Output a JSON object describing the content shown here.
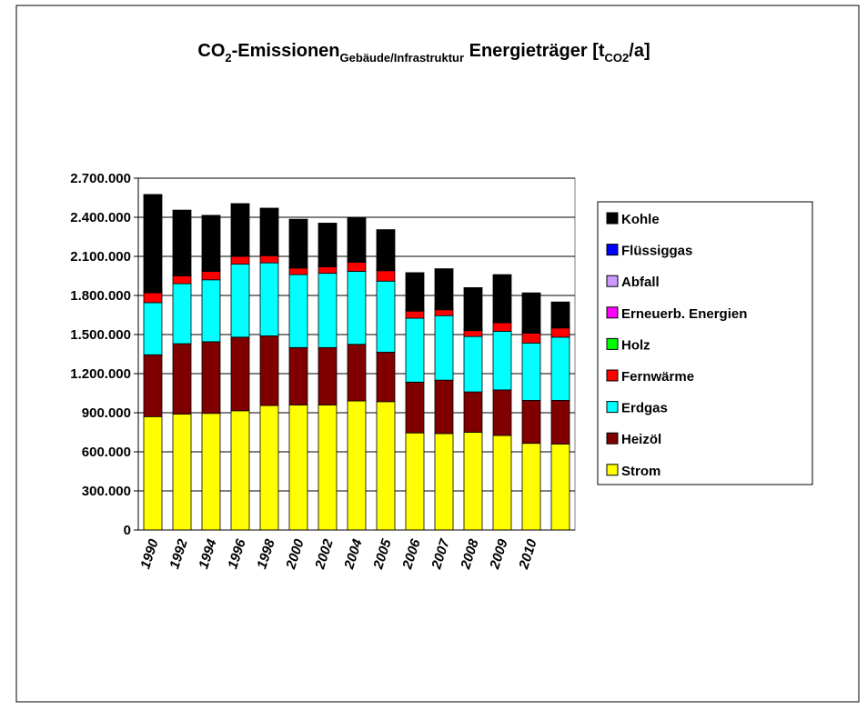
{
  "chart_data": {
    "type": "stacked_bar",
    "title": [
      {
        "text": "CO"
      },
      {
        "text": "2",
        "sub": true
      },
      {
        "text": "-Emissionen"
      },
      {
        "text": "Gebäude/Infrastruktur",
        "sub": true
      },
      {
        "text": " Energieträger [t"
      },
      {
        "text": "CO2",
        "sub": true
      },
      {
        "text": "/a]"
      }
    ],
    "categories": [
      "1990",
      "1992",
      "1994",
      "1996",
      "1998",
      "2000",
      "2002",
      "2004",
      "2005",
      "2006",
      "2007",
      "2008",
      "2009",
      "2010",
      null
    ],
    "series": [
      {
        "name": "Strom",
        "color": "#ffff00",
        "values": [
          870000,
          890000,
          895000,
          915000,
          955000,
          960000,
          960000,
          990000,
          985000,
          745000,
          740000,
          750000,
          725000,
          665000,
          660000
        ]
      },
      {
        "name": "Heizöl",
        "color": "#800000",
        "values": [
          475000,
          540000,
          550000,
          565000,
          535000,
          440000,
          440000,
          435000,
          380000,
          390000,
          410000,
          310000,
          350000,
          330000,
          335000
        ]
      },
      {
        "name": "Erdgas",
        "color": "#00ffff",
        "values": [
          400000,
          460000,
          475000,
          560000,
          560000,
          560000,
          570000,
          560000,
          545000,
          490000,
          495000,
          425000,
          450000,
          440000,
          485000
        ]
      },
      {
        "name": "Fernwärme",
        "color": "#ff0000",
        "values": [
          75000,
          60000,
          65000,
          60000,
          55000,
          50000,
          50000,
          70000,
          80000,
          55000,
          45000,
          45000,
          65000,
          75000,
          70000
        ]
      },
      {
        "name": "Holz",
        "color": "#00ff00",
        "values": [
          5000,
          5000,
          5000,
          5000,
          5000,
          5000,
          5000,
          5000,
          5000,
          5000,
          5000,
          5000,
          5000,
          5000,
          5000
        ]
      },
      {
        "name": "Erneuerb. Energien",
        "color": "#ff00ff",
        "values": [
          3000,
          3000,
          3000,
          3000,
          3000,
          3000,
          3000,
          3000,
          3000,
          3000,
          3000,
          3000,
          3000,
          3000,
          3000
        ]
      },
      {
        "name": "Abfall",
        "color": "#cc99ff",
        "values": [
          2000,
          2000,
          2000,
          2000,
          2000,
          2000,
          2000,
          2000,
          2000,
          2000,
          2000,
          2000,
          2000,
          2000,
          2000
        ]
      },
      {
        "name": "Flüssiggas",
        "color": "#0000ff",
        "values": [
          5000,
          5000,
          5000,
          5000,
          5000,
          5000,
          5000,
          5000,
          5000,
          5000,
          5000,
          5000,
          5000,
          5000,
          5000
        ]
      },
      {
        "name": "Kohle",
        "color": "#000000",
        "values": [
          740000,
          490000,
          415000,
          390000,
          350000,
          360000,
          320000,
          330000,
          300000,
          280000,
          300000,
          315000,
          355000,
          295000,
          185000
        ]
      }
    ],
    "ylim": [
      0,
      2700000
    ],
    "yticks": [
      0,
      {
        "value": 300000,
        "label": "300.000"
      },
      {
        "value": 600000,
        "label": "600.000"
      },
      {
        "value": 900000,
        "label": "900.000"
      },
      {
        "value": 1200000,
        "label": "1.200.000"
      },
      {
        "value": 1500000,
        "label": "1.500.000"
      },
      {
        "value": 1800000,
        "label": "1.800.000"
      },
      {
        "value": 2100000,
        "label": "2.100.000"
      },
      {
        "value": 2400000,
        "label": "2.400.000"
      },
      {
        "value": 2700000,
        "label": "2.700.000"
      }
    ],
    "grid": true,
    "legend": "right"
  }
}
